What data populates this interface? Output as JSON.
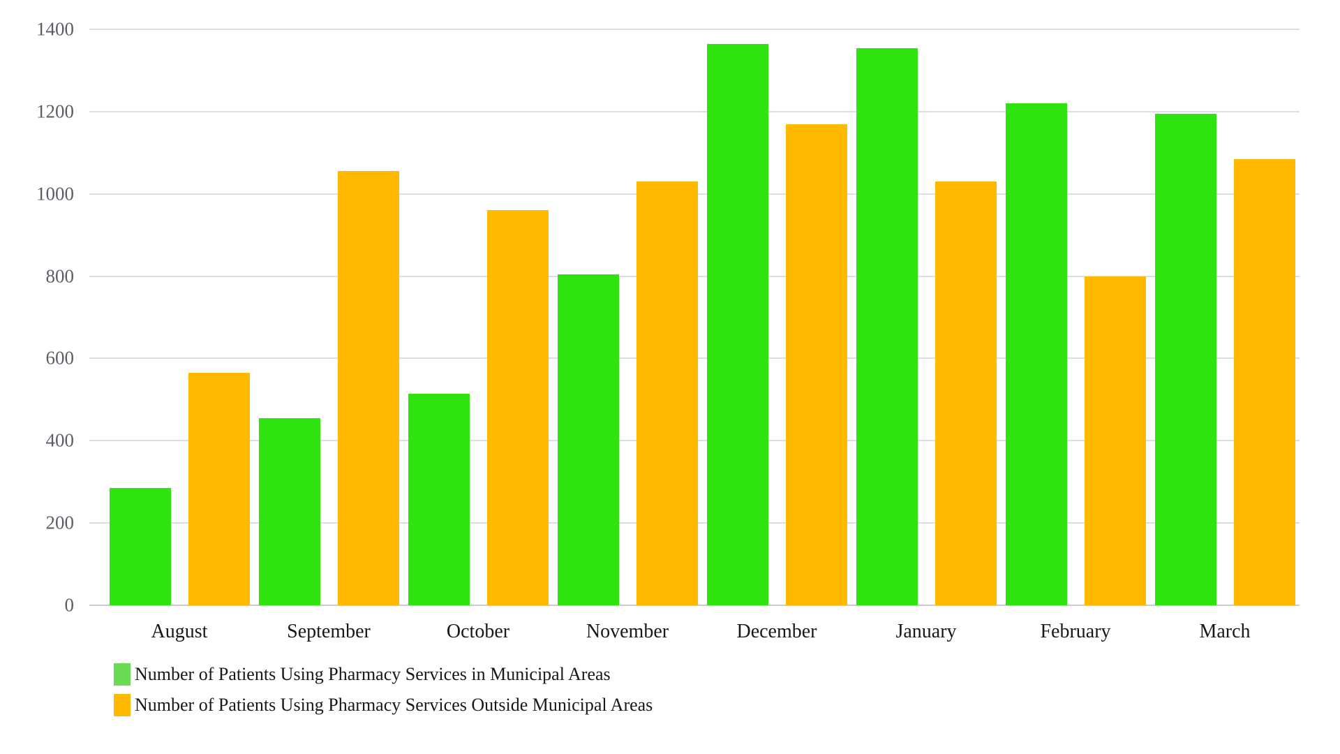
{
  "chart_data": {
    "type": "bar",
    "title": "",
    "xlabel": "",
    "ylabel": "",
    "categories": [
      "August",
      "September",
      "October",
      "November",
      "December",
      "January",
      "February",
      "March"
    ],
    "series": [
      {
        "name": "Number of Patients Using Pharmacy Services in Municipal Areas",
        "color": "#2fe30e",
        "legend_color": "#6cdb54",
        "values": [
          285,
          455,
          515,
          805,
          1365,
          1355,
          1220,
          1195
        ]
      },
      {
        "name": "Number of Patients Using Pharmacy Services Outside Municipal Areas",
        "color": "#ffba00",
        "legend_color": "#ffba00",
        "values": [
          565,
          1055,
          960,
          1030,
          1170,
          1030,
          800,
          1085
        ]
      }
    ],
    "ylim": [
      0,
      1400
    ],
    "yticks": [
      0,
      200,
      400,
      600,
      800,
      1000,
      1200,
      1400
    ],
    "grid": true,
    "legend_position": "bottom-left",
    "background_color": "#ffffff"
  }
}
